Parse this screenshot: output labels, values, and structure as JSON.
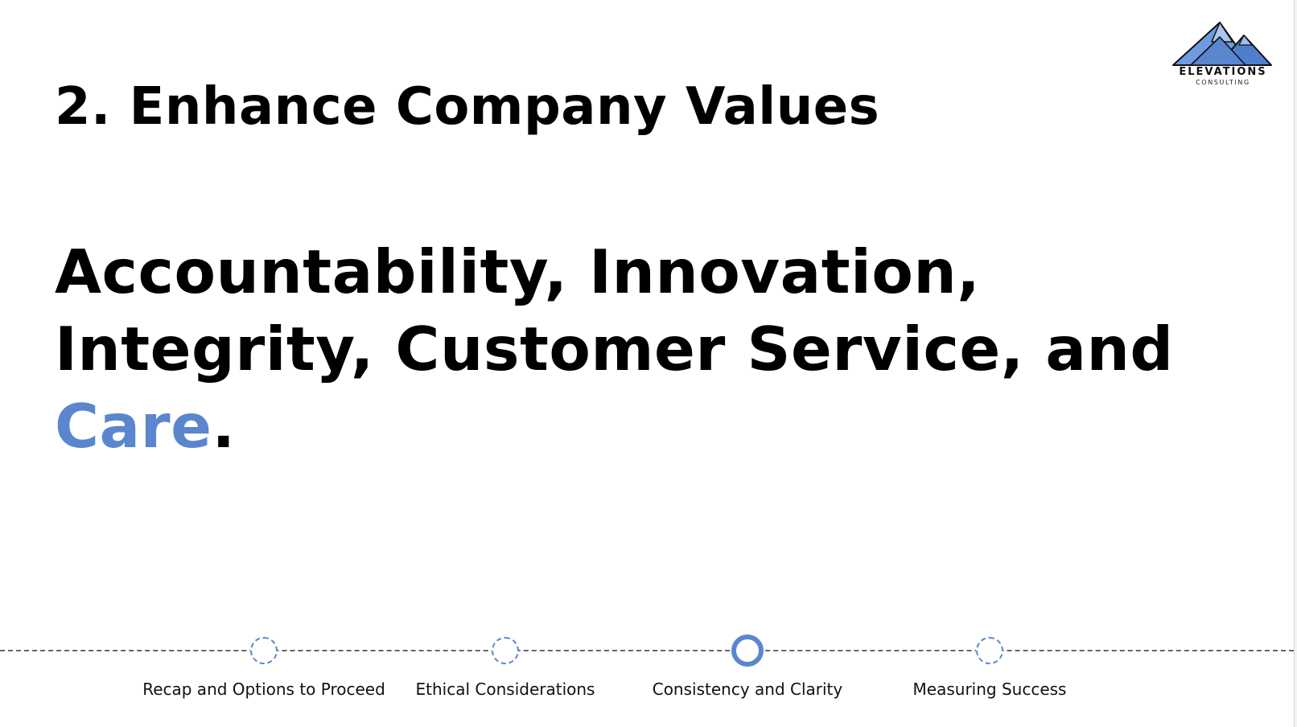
{
  "slide": {
    "title": "2. Enhance Company Values",
    "statement": {
      "line1": "Accountability, Innovation,",
      "line2": "Integrity, Customer Service, and",
      "line3_accent": "Care",
      "line3_end": "."
    }
  },
  "logo": {
    "name": "ELEVATIONS",
    "subtitle": "CONSULTING"
  },
  "timeline": {
    "steps": [
      {
        "label": "Recap and Options to Proceed",
        "state": "inactive"
      },
      {
        "label": "Ethical Considerations",
        "state": "inactive"
      },
      {
        "label": "Consistency and Clarity",
        "state": "active"
      },
      {
        "label": "Measuring Success",
        "state": "inactive"
      }
    ]
  },
  "colors": {
    "accent": "#5a86cf",
    "text": "#000000",
    "background": "#ffffff"
  },
  "icons": {
    "logo_mark": "mountain-icon"
  }
}
